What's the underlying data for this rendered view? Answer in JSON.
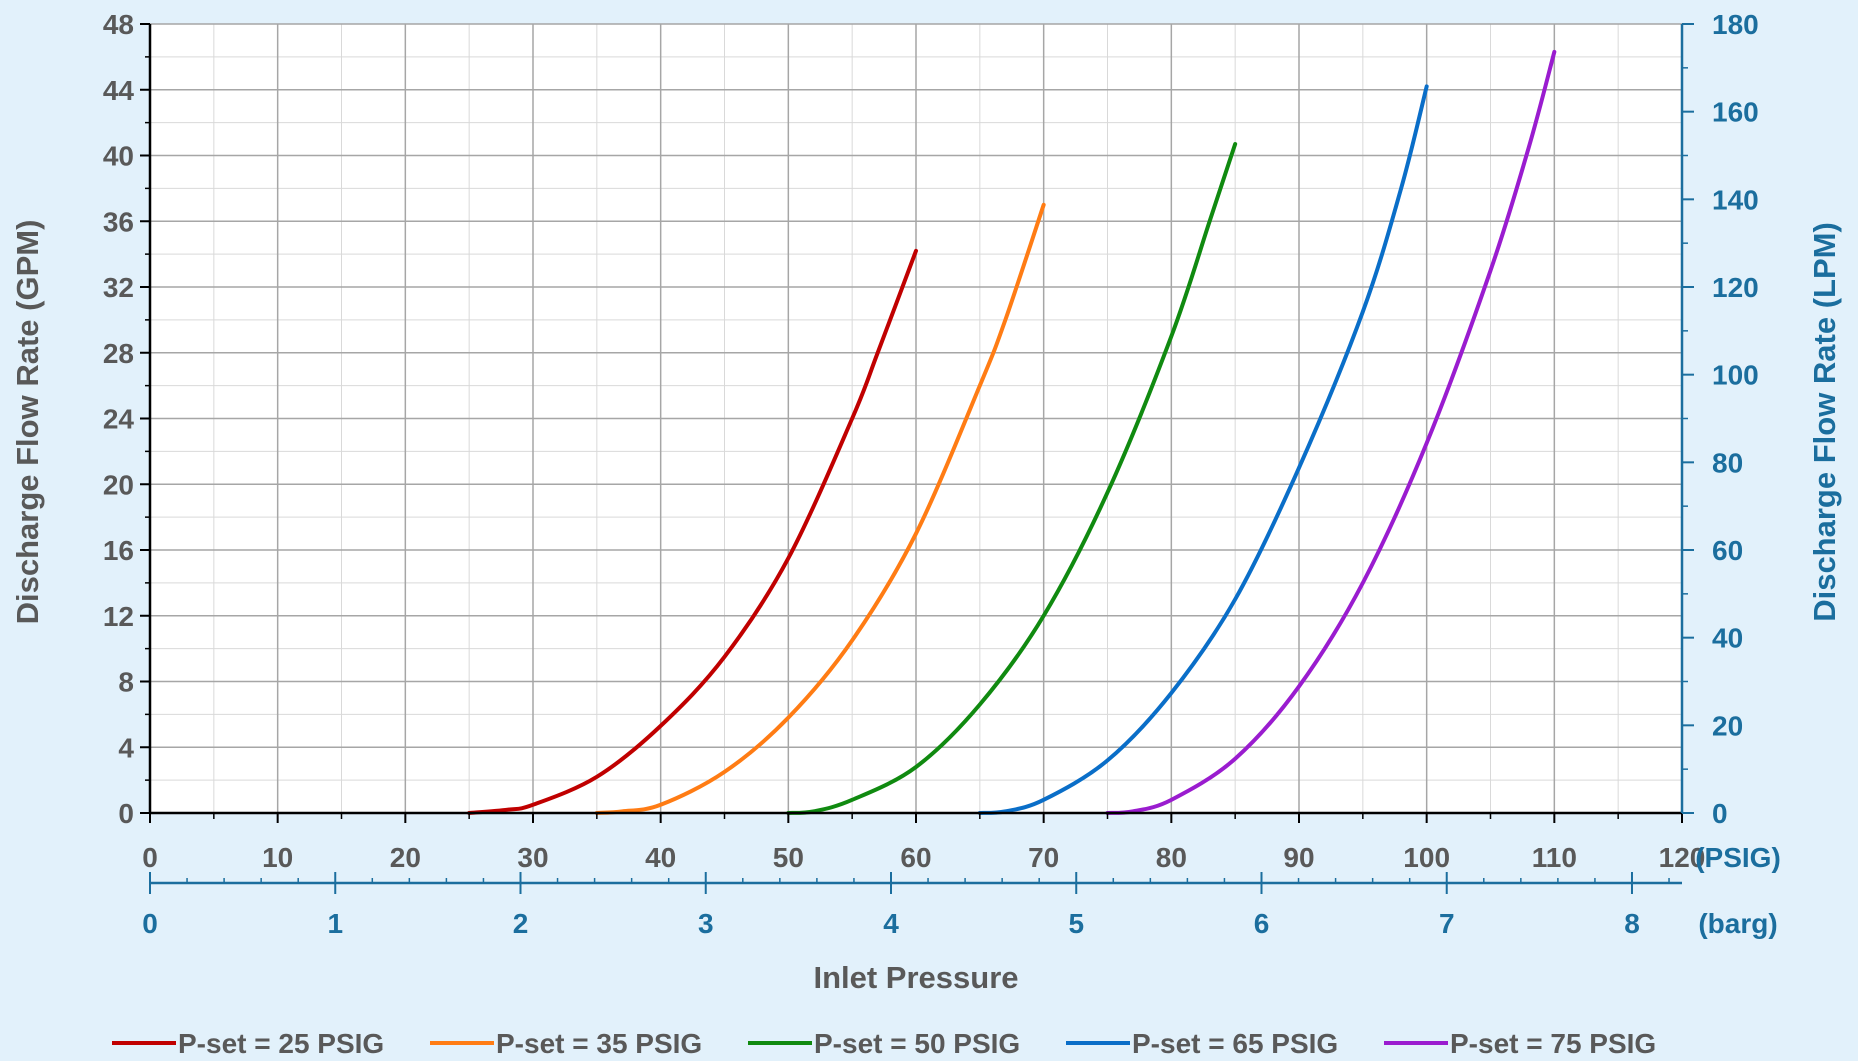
{
  "chart_data": {
    "type": "line",
    "xlabel": "Inlet Pressure",
    "ylabel": "Discharge Flow Rate (GPM)",
    "y2label": "Discharge Flow Rate (LPM)",
    "x_unit": "(PSIG)",
    "x2_unit": "(barg)",
    "xlim": [
      0,
      120
    ],
    "ylim": [
      0,
      48
    ],
    "y2lim": [
      0,
      180
    ],
    "x2lim": [
      0,
      8.27
    ],
    "x_ticks": [
      0,
      10,
      20,
      30,
      40,
      50,
      60,
      70,
      80,
      90,
      100,
      110,
      120
    ],
    "y_ticks": [
      0,
      4,
      8,
      12,
      16,
      20,
      24,
      28,
      32,
      36,
      40,
      44,
      48
    ],
    "y2_ticks": [
      0,
      20,
      40,
      60,
      80,
      100,
      120,
      140,
      160,
      180
    ],
    "x2_ticks": [
      0,
      1,
      2,
      3,
      4,
      5,
      6,
      7,
      8
    ],
    "grid": true,
    "legend_position": "bottom",
    "series": [
      {
        "name": "P-set = 25 PSIG",
        "color": "#c00000",
        "x": [
          25,
          28,
          30,
          35,
          40,
          45,
          50,
          55,
          57,
          60
        ],
        "y": [
          0,
          0.2,
          0.5,
          2.2,
          5.3,
          9.5,
          15.5,
          24,
          28,
          34.2
        ]
      },
      {
        "name": "P-set = 35 PSIG",
        "color": "#ff7c14",
        "x": [
          35,
          37,
          40,
          45,
          50,
          55,
          60,
          65,
          67,
          70
        ],
        "y": [
          0,
          0.1,
          0.5,
          2.5,
          5.8,
          10.5,
          17,
          26,
          30,
          37
        ]
      },
      {
        "name": "P-set = 50 PSIG",
        "color": "#108a10",
        "x": [
          50,
          52,
          55,
          60,
          65,
          70,
          75,
          80,
          83,
          85
        ],
        "y": [
          0,
          0.1,
          0.8,
          2.8,
          6.6,
          12,
          19.5,
          29,
          36,
          40.7
        ]
      },
      {
        "name": "P-set = 65 PSIG",
        "color": "#0a6ec8",
        "x": [
          65,
          67,
          70,
          75,
          80,
          85,
          90,
          95,
          98,
          100
        ],
        "y": [
          0,
          0.1,
          0.8,
          3.2,
          7.3,
          13,
          21,
          30.5,
          38,
          44.2
        ]
      },
      {
        "name": "P-set = 75 PSIG",
        "color": "#9a1ccf",
        "x": [
          75,
          77,
          80,
          85,
          90,
          95,
          100,
          105,
          108,
          110
        ],
        "y": [
          0,
          0.1,
          0.8,
          3.3,
          7.7,
          14,
          22.5,
          33,
          40.5,
          46.3
        ]
      }
    ]
  }
}
